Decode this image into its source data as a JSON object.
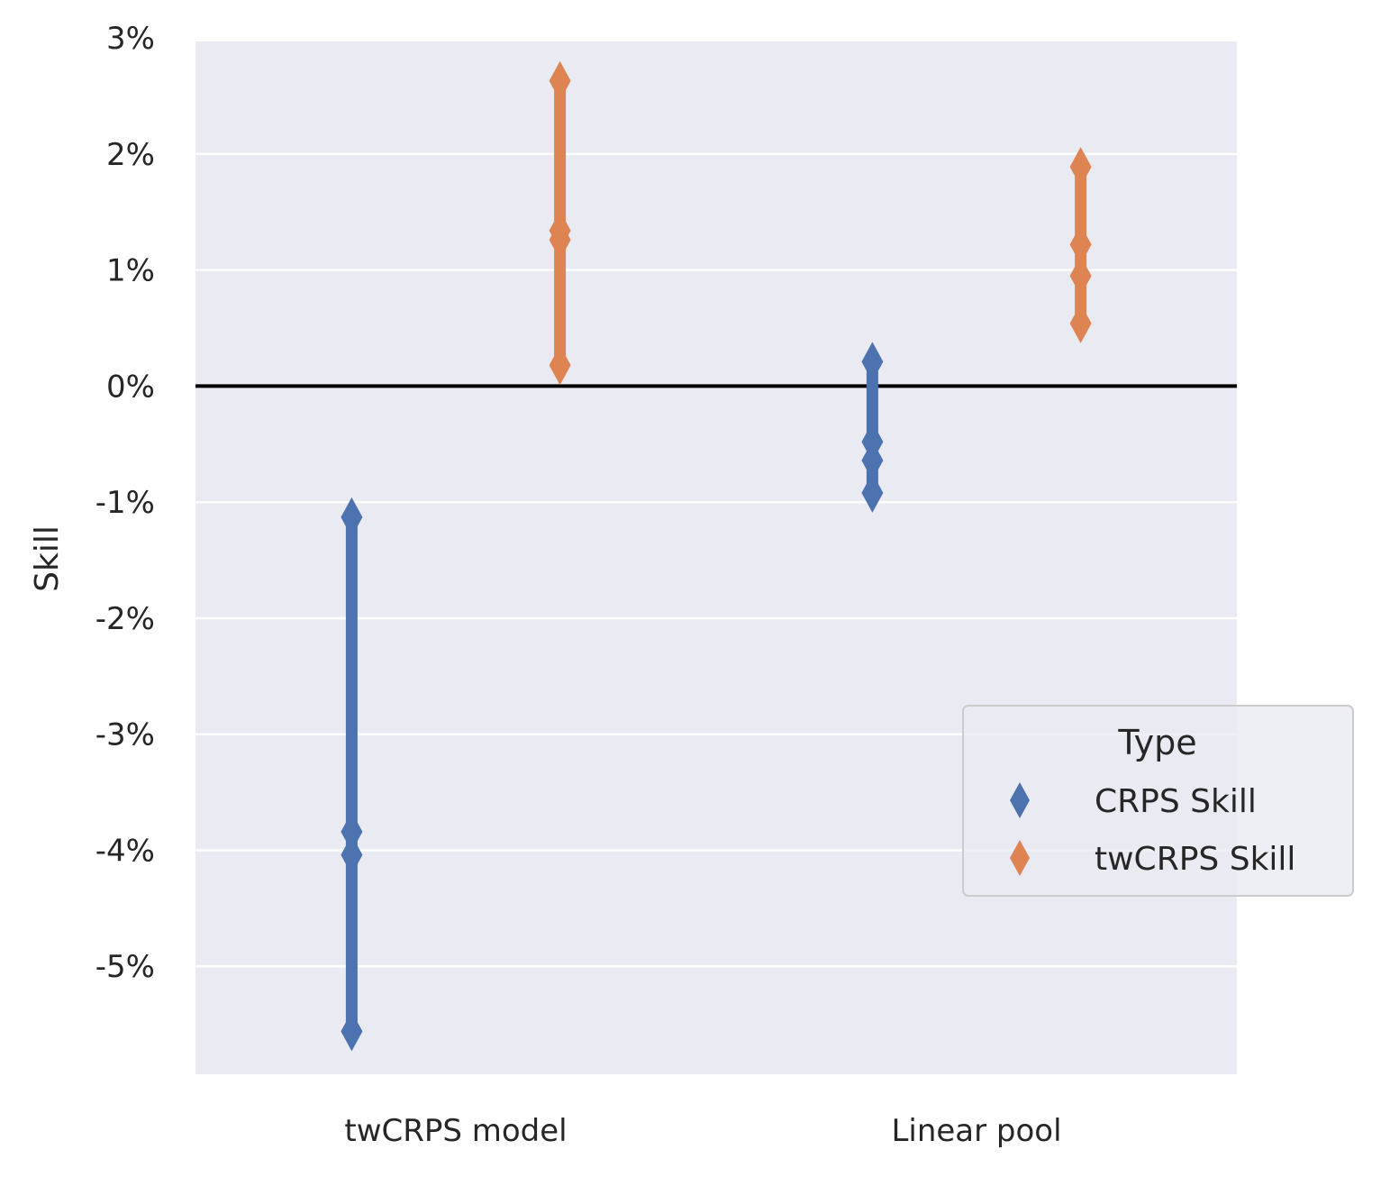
{
  "chart_data": {
    "type": "scatter",
    "title": "",
    "xlabel": "",
    "ylabel": "Skill",
    "categories": [
      "twCRPS model",
      "Linear pool"
    ],
    "ylim": [
      -5.93,
      2.97
    ],
    "yticks": [
      3,
      2,
      1,
      0,
      -1,
      -2,
      -3,
      -4,
      -5
    ],
    "ytick_labels": [
      "3%",
      "2%",
      "1%",
      "0%",
      "-1%",
      "-2%",
      "-3%",
      "-4%",
      "-5%"
    ],
    "grid": true,
    "reference_line": 0,
    "legend_title": "Type",
    "legend_position": "lower-right",
    "series": [
      {
        "name": "CRPS Skill",
        "color": "#4c72b0",
        "points": [
          {
            "category": "twCRPS model",
            "values": [
              -1.13,
              -3.84,
              -4.04,
              -5.56
            ]
          },
          {
            "category": "Linear pool",
            "values": [
              0.21,
              -0.48,
              -0.64,
              -0.92
            ]
          }
        ]
      },
      {
        "name": "twCRPS Skill",
        "color": "#dd8452",
        "points": [
          {
            "category": "twCRPS model",
            "values": [
              2.63,
              1.34,
              1.26,
              0.18
            ]
          },
          {
            "category": "Linear pool",
            "values": [
              1.89,
              1.22,
              0.95,
              0.54
            ]
          }
        ]
      }
    ]
  }
}
